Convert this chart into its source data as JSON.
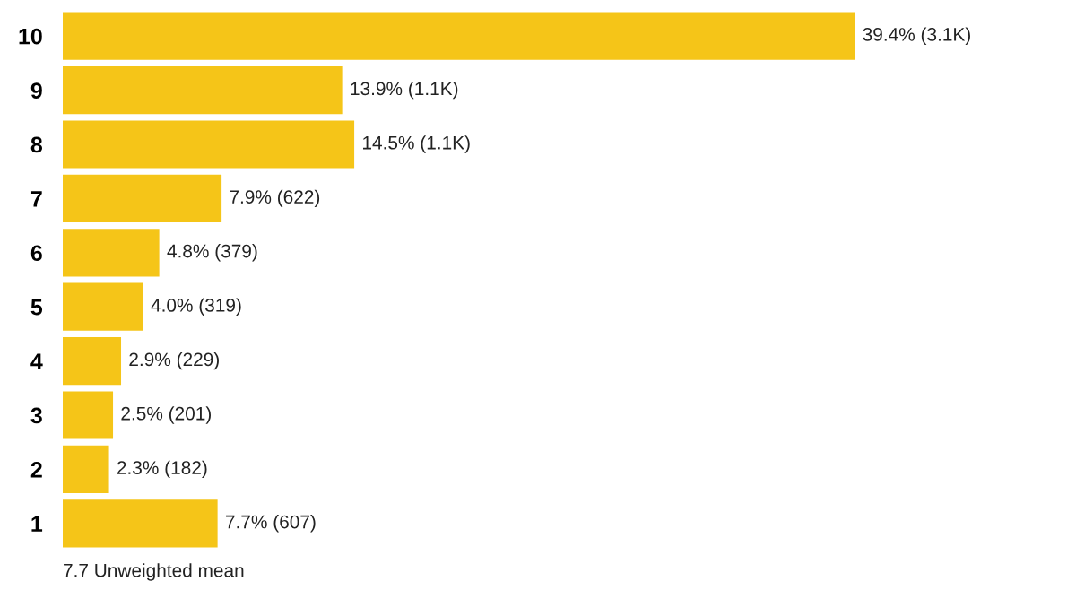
{
  "chart_data": {
    "type": "bar",
    "orientation": "horizontal",
    "categories": [
      "10",
      "9",
      "8",
      "7",
      "6",
      "5",
      "4",
      "3",
      "2",
      "1"
    ],
    "values": [
      39.4,
      13.9,
      14.5,
      7.9,
      4.8,
      4.0,
      2.9,
      2.5,
      2.3,
      7.7
    ],
    "value_labels": [
      "39.4% (3.1K)",
      "13.9% (1.1K)",
      "14.5% (1.1K)",
      "7.9% (622)",
      "4.8% (379)",
      "4.0% (319)",
      "2.9% (229)",
      "2.5% (201)",
      "2.3% (182)",
      "7.7% (607)"
    ],
    "color": "#f5c518",
    "grid": false,
    "legend": false,
    "annotations": [
      "7.7 Unweighted mean"
    ]
  }
}
